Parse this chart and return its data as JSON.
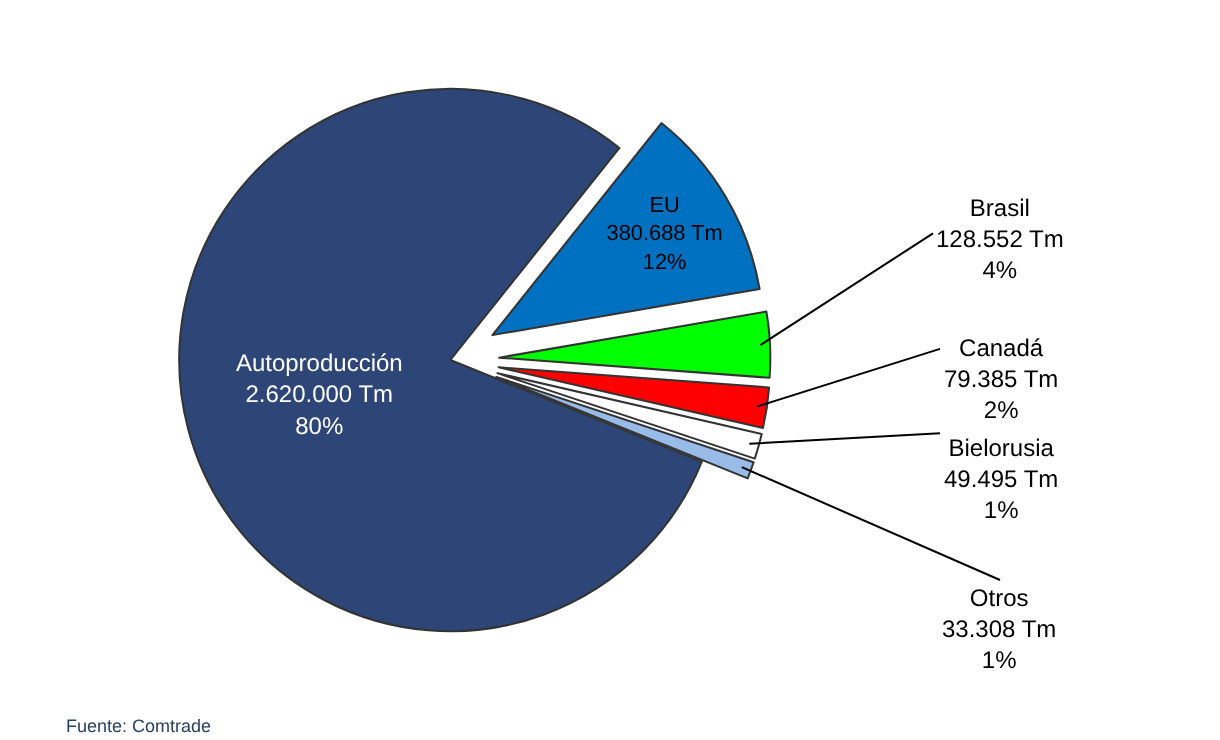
{
  "chart_data": {
    "type": "pie",
    "categories": [
      "Autoproducción",
      "EU",
      "Brasil",
      "Canadá",
      "Bielorusia",
      "Otros"
    ],
    "values": [
      2620000,
      380688,
      128552,
      79385,
      49495,
      33308
    ],
    "value_labels": [
      "2.620.000 Tm\n80%",
      "380.688 Tm\n12%",
      "128.552 Tm\n4%",
      "79.385 Tm\n2%",
      "49.495 Tm\n1%",
      "33.308 Tm\n1%"
    ],
    "colors": [
      "#2e4677",
      "#0070c0",
      "#00ff00",
      "#ff0000",
      "#ffffff",
      "#99bbe8"
    ],
    "legend": false,
    "annotations": [
      "Fuente: Comtrade"
    ]
  }
}
